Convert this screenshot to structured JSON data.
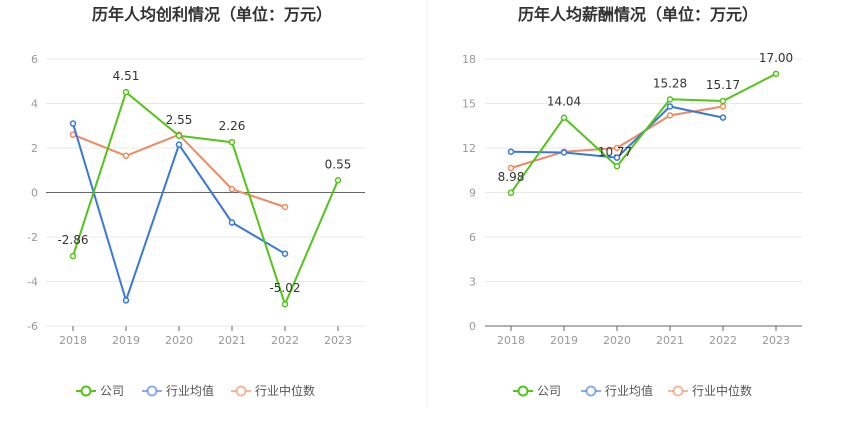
{
  "chart_data": [
    {
      "type": "line",
      "title": "历年人均创利情况（单位：万元）",
      "categories": [
        "2018",
        "2019",
        "2020",
        "2021",
        "2022",
        "2023"
      ],
      "ylim": [
        -6,
        6
      ],
      "yticks": [
        -6,
        -4,
        -2,
        0,
        2,
        4,
        6
      ],
      "ytick_labels": [
        "-6",
        "-4",
        "-2",
        "0",
        "2",
        "4",
        "6"
      ],
      "series": [
        {
          "name": "公司",
          "color": "#52c41a",
          "values": [
            -2.86,
            4.51,
            2.55,
            2.26,
            -5.02,
            0.55
          ],
          "labels": [
            "-2.86",
            "4.51",
            "2.55",
            "2.26",
            "-5.02",
            "0.55"
          ]
        },
        {
          "name": "行业均值",
          "color": "#3a78d8",
          "values": [
            3.1,
            -4.85,
            2.15,
            -1.35,
            -2.75,
            null
          ]
        },
        {
          "name": "行业中位数",
          "color": "#ee8a60",
          "values": [
            2.6,
            1.65,
            2.6,
            0.15,
            -0.65,
            null
          ]
        }
      ]
    },
    {
      "type": "line",
      "title": "历年人均薪酬情况（单位：万元）",
      "categories": [
        "2018",
        "2019",
        "2020",
        "2021",
        "2022",
        "2023"
      ],
      "ylim": [
        0,
        18
      ],
      "yticks": [
        0,
        3,
        6,
        9,
        12,
        15,
        18
      ],
      "ytick_labels": [
        "0",
        "3",
        "6",
        "9",
        "12",
        "15",
        "18"
      ],
      "series": [
        {
          "name": "公司",
          "color": "#52c41a",
          "values": [
            8.98,
            14.04,
            10.77,
            15.28,
            15.17,
            17.0
          ],
          "labels": [
            "8.98",
            "14.04",
            "10.77",
            "15.28",
            "15.17",
            "17.00"
          ]
        },
        {
          "name": "行业均值",
          "color": "#3a78d8",
          "values": [
            11.75,
            11.7,
            11.35,
            14.8,
            14.05,
            null
          ]
        },
        {
          "name": "行业中位数",
          "color": "#ee8a60",
          "values": [
            10.65,
            11.75,
            12.0,
            14.2,
            14.8,
            null
          ]
        }
      ]
    }
  ],
  "legend_colors": {
    "company": "#52c41a",
    "industry_mean": "#3a78d8",
    "industry_median": "#ee8a60"
  }
}
